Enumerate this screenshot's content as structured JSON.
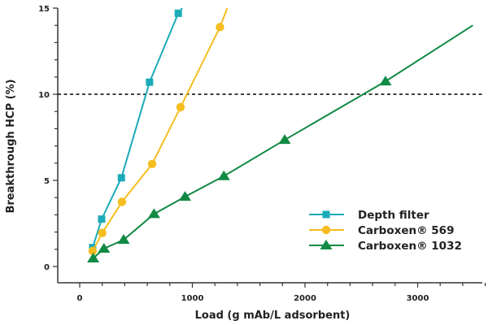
{
  "chart_data": {
    "type": "line",
    "xlabel": "Load (g mAb/L adsorbent)",
    "ylabel": "Breakthrough HCP (%)",
    "xlim": [
      -200,
      3600
    ],
    "ylim": [
      -1,
      15
    ],
    "x_ticks": [
      "0",
      "1000",
      "2000",
      "3000"
    ],
    "y_ticks": [
      "0",
      "5",
      "10",
      "15"
    ],
    "grid": false,
    "legend_position": "bottom-right",
    "reference_line": {
      "y": 10,
      "style": "dashed",
      "color": "#000000"
    },
    "series": [
      {
        "name": "Depth filter",
        "name_suffix": "",
        "marker": "square",
        "color": "#1aabb8",
        "x": [
          115,
          195,
          370,
          620,
          875
        ],
        "y": [
          1.1,
          2.75,
          5.15,
          10.7,
          14.7
        ],
        "line_end": [
          910,
          15
        ]
      },
      {
        "name": "Carboxen",
        "name_suffix": "® 569",
        "marker": "circle",
        "color": "#f5bd1f",
        "x": [
          115,
          200,
          375,
          643,
          895,
          1245
        ],
        "y": [
          0.9,
          1.95,
          3.75,
          5.95,
          9.25,
          13.9
        ],
        "line_end": [
          1310,
          15
        ]
      },
      {
        "name": "Carboxen",
        "name_suffix": "® 1032",
        "marker": "triangle",
        "color": "#118a44",
        "x": [
          120,
          215,
          390,
          660,
          935,
          1280,
          1820,
          2715
        ],
        "y": [
          0.47,
          1.04,
          1.55,
          3.05,
          4.05,
          5.25,
          7.35,
          10.75
        ],
        "line_end": [
          3490,
          14.0
        ]
      }
    ]
  }
}
